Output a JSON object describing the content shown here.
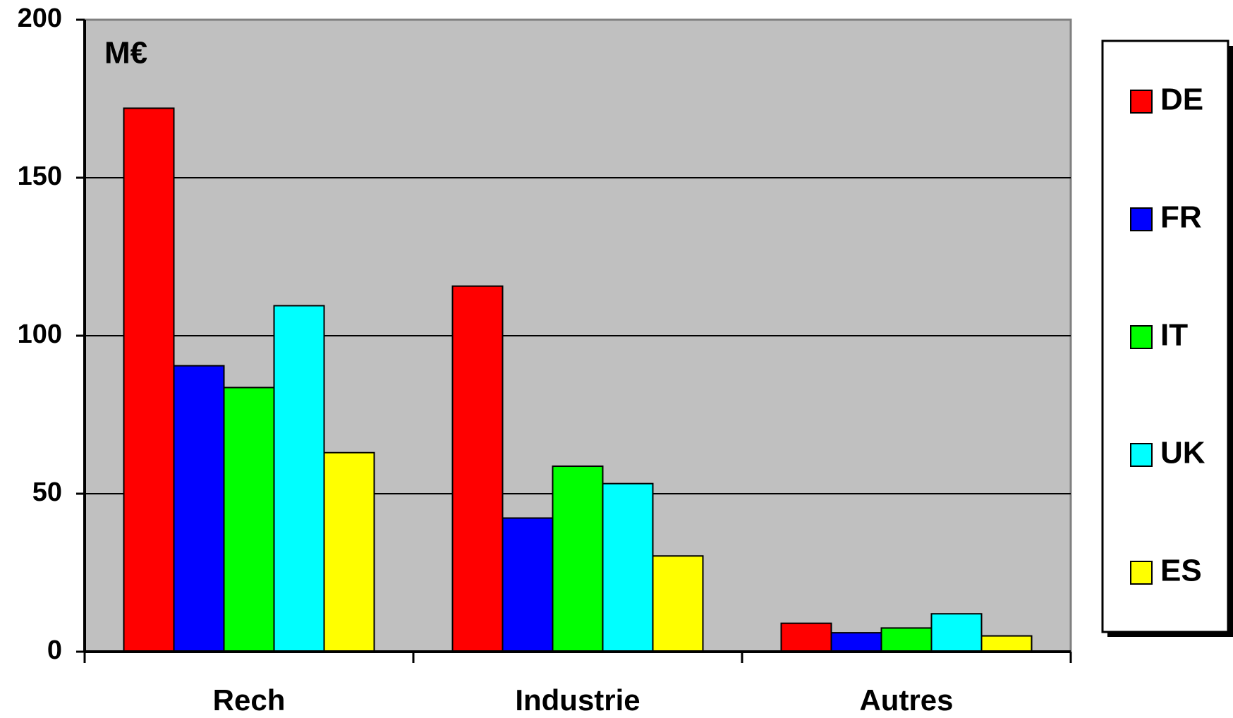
{
  "chart_data": {
    "type": "bar",
    "annotation": "M€",
    "categories": [
      "Rech",
      "Industrie",
      "Autres"
    ],
    "series": [
      {
        "name": "DE",
        "color": "#ff0000",
        "values": [
          172,
          115.7,
          9
        ]
      },
      {
        "name": "FR",
        "color": "#0000ff",
        "values": [
          90.5,
          42.3,
          6
        ]
      },
      {
        "name": "IT",
        "color": "#00ff00",
        "values": [
          83.6,
          58.7,
          7.5
        ]
      },
      {
        "name": "UK",
        "color": "#00ffff",
        "values": [
          109.5,
          53.2,
          12
        ]
      },
      {
        "name": "ES",
        "color": "#ffff00",
        "values": [
          63,
          30.3,
          5
        ]
      }
    ],
    "ylim": [
      0,
      200
    ],
    "yticks": [
      0,
      50,
      100,
      150,
      200
    ],
    "grid": true,
    "legend": "right"
  }
}
